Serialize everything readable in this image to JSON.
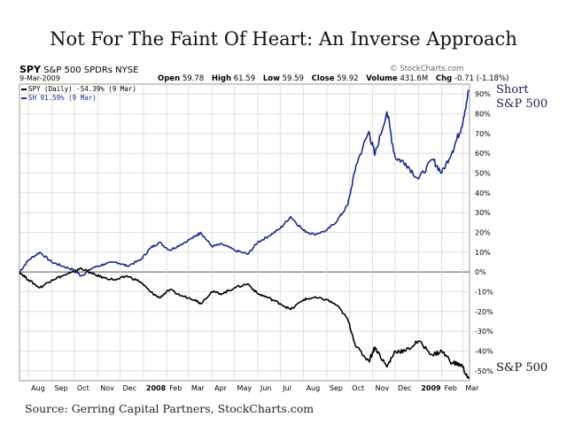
{
  "title": "Not For The Faint Of Heart: An Inverse Approach",
  "header": {
    "symbol": "SPY",
    "name": "S&P 500 SPDRs NYSE",
    "source_mark": "© StockCharts.com",
    "date": "9-Mar-2009",
    "open_label": "Open",
    "open_value": "59.78",
    "high_label": "High",
    "high_value": "61.59",
    "low_label": "Low",
    "low_value": "59.59",
    "close_label": "Close",
    "close_value": "59.92",
    "volume_label": "Volume",
    "volume_value": "431.6M",
    "chg_label": "Chg",
    "chg_value": "-0.71 (-1.18%)"
  },
  "legend": {
    "spy": "SPY (Daily) -54.39% (9 Mar)",
    "sh": "SH 91.59% (9 Mar)"
  },
  "labels": {
    "short": "Short",
    "sp500_short": "S&P 500",
    "sp500": "S&P 500"
  },
  "source": "Source: Gerring Capital Partners, StockCharts.com",
  "colors": {
    "spy": "#000000",
    "sh": "#1c2a8c",
    "grid": "#d8d8d8",
    "zero": "#555555"
  },
  "chart_data": {
    "type": "line",
    "x_ticks": [
      "Aug",
      "Sep",
      "Oct",
      "Nov",
      "Dec",
      "2008",
      "Feb",
      "Mar",
      "Apr",
      "May",
      "Jun",
      "Jul",
      "Aug",
      "Sep",
      "Oct",
      "Nov",
      "Dec",
      "2009",
      "Feb",
      "Mar"
    ],
    "y_ticks": [
      "90%",
      "80%",
      "70%",
      "60%",
      "50%",
      "40%",
      "30%",
      "20%",
      "10%",
      "0%",
      "-10%",
      "-20%",
      "-30%",
      "-40%",
      "-50%"
    ],
    "ylim": [
      -55,
      95
    ],
    "grid": true,
    "series": [
      {
        "name": "SH",
        "key": "sh",
        "x": [
          "2007-07-20",
          "2007-08-01",
          "2007-08-16",
          "2007-09-01",
          "2007-09-15",
          "2007-10-01",
          "2007-10-10",
          "2007-10-25",
          "2007-11-10",
          "2007-11-26",
          "2007-12-10",
          "2007-12-28",
          "2008-01-10",
          "2008-01-22",
          "2008-02-05",
          "2008-02-20",
          "2008-03-10",
          "2008-03-17",
          "2008-04-01",
          "2008-04-15",
          "2008-05-01",
          "2008-05-19",
          "2008-06-01",
          "2008-06-15",
          "2008-07-01",
          "2008-07-15",
          "2008-08-01",
          "2008-08-15",
          "2008-09-01",
          "2008-09-15",
          "2008-09-29",
          "2008-10-10",
          "2008-10-27",
          "2008-11-04",
          "2008-11-20",
          "2008-12-01",
          "2008-12-15",
          "2009-01-01",
          "2009-01-20",
          "2009-02-01",
          "2009-02-15",
          "2009-02-27",
          "2009-03-09"
        ],
        "values": [
          0,
          6,
          10,
          5,
          3,
          1,
          -2,
          2,
          4,
          5,
          3,
          6,
          12,
          15,
          11,
          14,
          18,
          20,
          13,
          14,
          11,
          9,
          15,
          18,
          22,
          28,
          21,
          19,
          21,
          26,
          34,
          54,
          71,
          59,
          81,
          58,
          55,
          47,
          57,
          50,
          61,
          73,
          92
        ]
      },
      {
        "name": "SPY",
        "key": "spy",
        "x": [
          "2007-07-20",
          "2007-08-01",
          "2007-08-16",
          "2007-09-01",
          "2007-09-15",
          "2007-10-01",
          "2007-10-10",
          "2007-10-25",
          "2007-11-10",
          "2007-11-26",
          "2007-12-10",
          "2007-12-28",
          "2008-01-10",
          "2008-01-22",
          "2008-02-05",
          "2008-02-20",
          "2008-03-10",
          "2008-03-17",
          "2008-04-01",
          "2008-04-15",
          "2008-05-01",
          "2008-05-19",
          "2008-06-01",
          "2008-06-15",
          "2008-07-01",
          "2008-07-15",
          "2008-08-01",
          "2008-08-15",
          "2008-09-01",
          "2008-09-15",
          "2008-09-29",
          "2008-10-10",
          "2008-10-27",
          "2008-11-04",
          "2008-11-20",
          "2008-12-01",
          "2008-12-15",
          "2009-01-01",
          "2009-01-20",
          "2009-02-01",
          "2009-02-15",
          "2009-02-27",
          "2009-03-09"
        ],
        "values": [
          0,
          -4,
          -8,
          -4,
          -2,
          0,
          2,
          -1,
          -3,
          -4,
          -2,
          -5,
          -10,
          -13,
          -9,
          -12,
          -14,
          -16,
          -10,
          -11,
          -8,
          -6,
          -11,
          -13,
          -16,
          -19,
          -14,
          -13,
          -14,
          -17,
          -24,
          -38,
          -45,
          -38,
          -48,
          -40,
          -40,
          -35,
          -42,
          -40,
          -46,
          -47,
          -54
        ]
      }
    ]
  }
}
